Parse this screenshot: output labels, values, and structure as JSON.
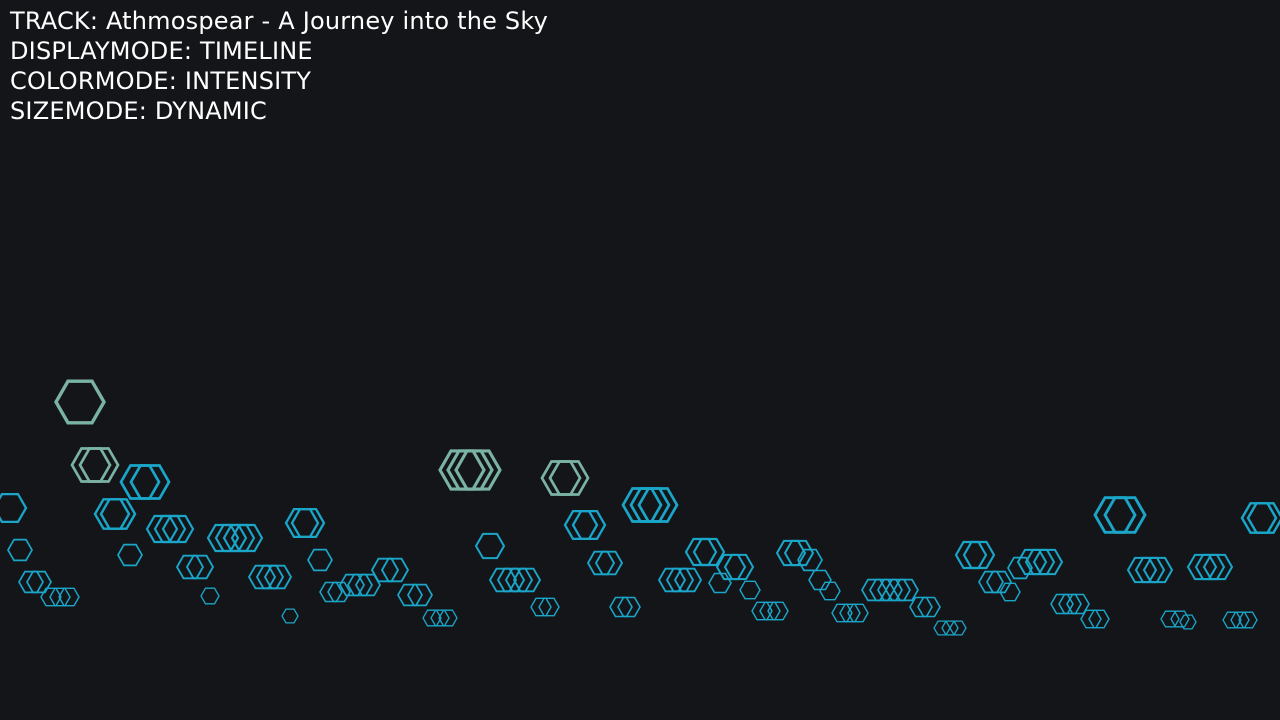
{
  "hud": {
    "track": "TRACK: Athmospear - A Journey into the Sky",
    "displaymode": "DISPLAYMODE: TIMELINE",
    "colormode": "COLORMODE: INTENSITY",
    "sizemode": "SIZEMODE: DYNAMIC"
  },
  "colors": {
    "background": "#141519",
    "text": "#ffffff",
    "low_intensity": "#1aa6c9",
    "high_intensity": "#7ab3a5"
  }
}
